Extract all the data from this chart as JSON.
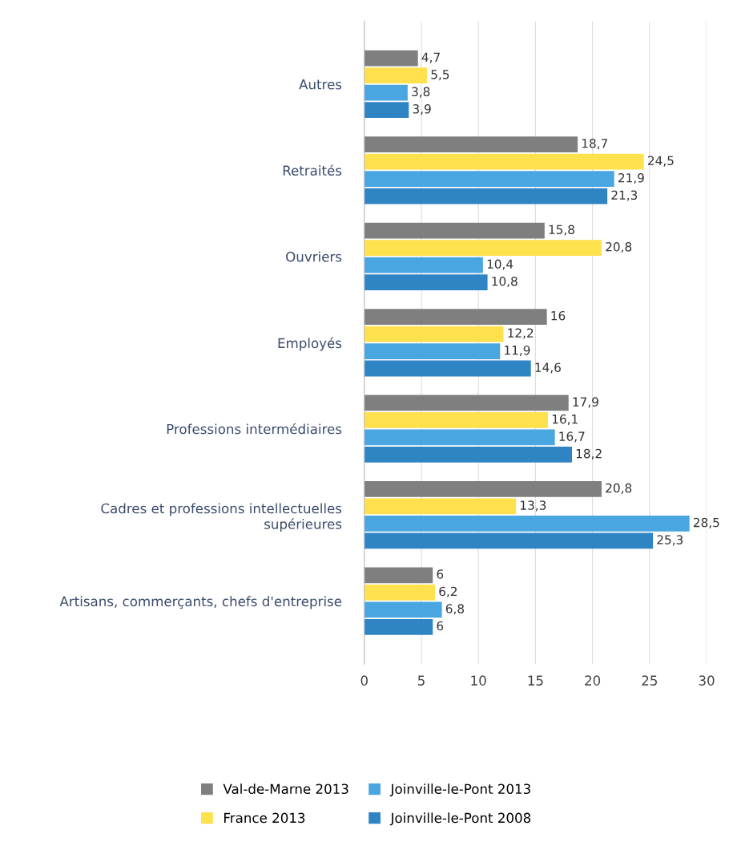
{
  "chart_data": {
    "type": "bar",
    "orientation": "horizontal",
    "categories": [
      "Autres",
      "Retraités",
      "Ouvriers",
      "Employés",
      "Professions intermédiaires",
      "Cadres et professions intellectuelles\nsupérieures",
      "Artisans, commerçants, chefs d'entreprise"
    ],
    "series": [
      {
        "name": "Val-de-Marne 2013",
        "color": "#7f7f7f",
        "values": [
          4.7,
          18.7,
          15.8,
          16,
          17.9,
          20.8,
          6
        ],
        "value_labels": [
          "4,7",
          "18,7",
          "15,8",
          "16",
          "17,9",
          "20,8",
          "6"
        ]
      },
      {
        "name": "France 2013",
        "color": "#ffe14d",
        "values": [
          5.5,
          24.5,
          20.8,
          12.2,
          16.1,
          13.3,
          6.2
        ],
        "value_labels": [
          "5,5",
          "24,5",
          "20,8",
          "12,2",
          "16,1",
          "13,3",
          "6,2"
        ]
      },
      {
        "name": "Joinville-le-Pont 2013",
        "color": "#4aa6e0",
        "values": [
          3.8,
          21.9,
          10.4,
          11.9,
          16.7,
          28.5,
          6.8
        ],
        "value_labels": [
          "3,8",
          "21,9",
          "10,4",
          "11,9",
          "16,7",
          "28,5",
          "6,8"
        ]
      },
      {
        "name": "Joinville-le-Pont 2008",
        "color": "#2f84c4",
        "values": [
          3.9,
          21.3,
          10.8,
          14.6,
          18.2,
          25.3,
          6
        ],
        "value_labels": [
          "3,9",
          "21,3",
          "10,8",
          "14,6",
          "18,2",
          "25,3",
          "6"
        ]
      }
    ],
    "xlim": [
      0,
      30
    ],
    "xticks": [
      0,
      5,
      10,
      15,
      20,
      25,
      30
    ],
    "grid": "x",
    "legend": "bottom"
  }
}
